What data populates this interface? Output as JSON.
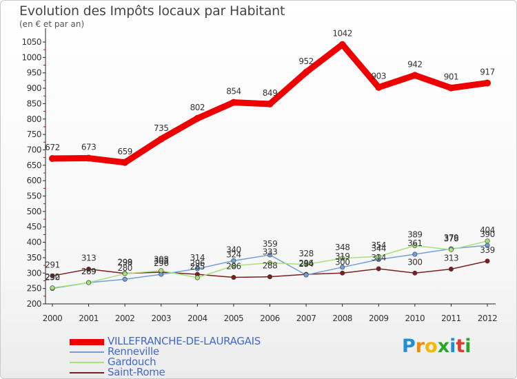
{
  "title": "Evolution des Impôts locaux par Habitant",
  "subtitle": "(en € et par an)",
  "logo": {
    "text": "Proxiti",
    "letters": [
      "P",
      "r",
      "o",
      "x",
      "i",
      "t",
      "i"
    ],
    "colors": [
      "#1f8ed8",
      "#f08c00",
      "#f5b800",
      "#2aa52a",
      "#1f8ed8",
      "#e03a2c",
      "#2aa52a"
    ]
  },
  "chart_data": {
    "type": "line",
    "title": "Evolution des Impôts locaux par Habitant",
    "subtitle": "(en € et par an)",
    "categories": [
      "2000",
      "2001",
      "2002",
      "2003",
      "2004",
      "2005",
      "2006",
      "2007",
      "2008",
      "2009",
      "2010",
      "2011",
      "2012"
    ],
    "ylim": [
      200,
      1050
    ],
    "yticks": [
      200,
      250,
      300,
      350,
      400,
      450,
      500,
      550,
      600,
      650,
      700,
      750,
      800,
      850,
      900,
      950,
      1000,
      1050
    ],
    "grid": false,
    "legend_position": "bottom-left",
    "series": [
      {
        "name": "VILLEFRANCHE-DE-LAURAGAIS",
        "color": "#ee0000",
        "values": [
          672,
          673,
          659,
          735,
          802,
          854,
          849,
          952,
          1042,
          903,
          942,
          901,
          917
        ],
        "labels": [
          "672",
          "673",
          "659",
          "735",
          "802",
          "854",
          "849",
          "952",
          "1042",
          "903",
          "942",
          "901",
          "917"
        ]
      },
      {
        "name": "Renneville",
        "color": "#6fa0d8",
        "values": [
          250,
          269,
          280,
          296,
          314,
          340,
          359,
          294,
          319,
          344,
          361,
          379,
          390
        ],
        "labels": [
          "250",
          "269",
          "280",
          "296",
          "314",
          "340",
          "359",
          "294",
          "319",
          "344",
          "361",
          "379",
          "390"
        ]
      },
      {
        "name": "Gardouch",
        "color": "#a8e07a",
        "values": [
          252,
          269,
          298,
          308,
          285,
          324,
          333,
          328,
          348,
          354,
          389,
          376,
          404
        ],
        "labels": [
          "252",
          "269",
          "298",
          "308",
          "285",
          "324",
          "333",
          "328",
          "348",
          "354",
          "389",
          "376",
          "404"
        ]
      },
      {
        "name": "Saint-Rome",
        "color": "#7a1f1f",
        "values": [
          291,
          313,
          299,
          303,
          296,
          286,
          288,
          296,
          300,
          314,
          300,
          313,
          339
        ],
        "labels": [
          "291",
          "313",
          "299",
          "303",
          "296",
          "286",
          "288",
          "296",
          "300",
          "314",
          "300",
          "313",
          "339"
        ]
      }
    ]
  }
}
